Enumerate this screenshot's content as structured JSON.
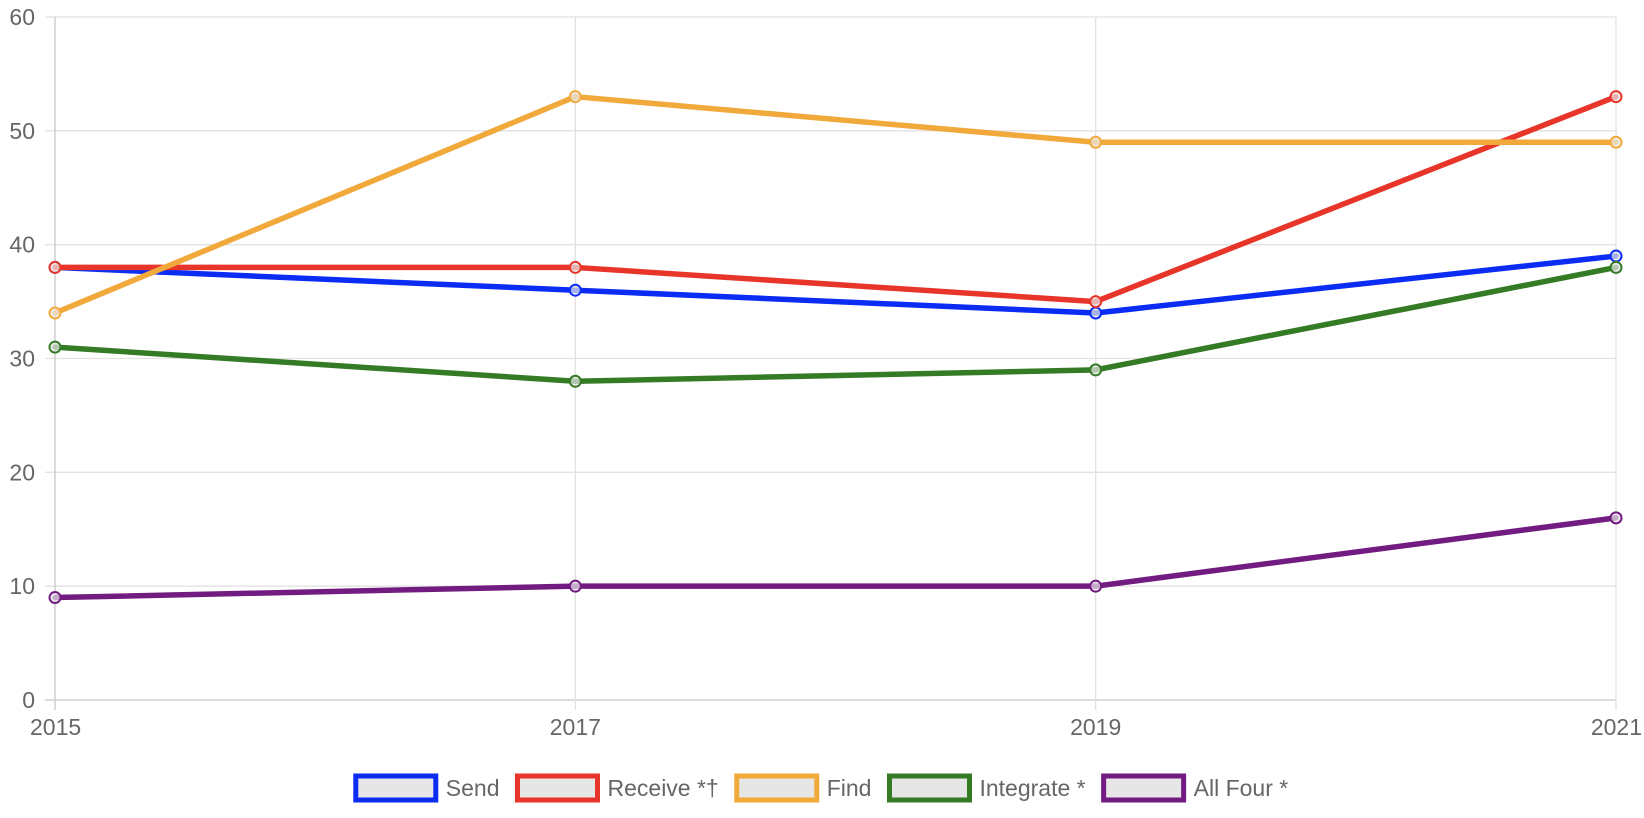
{
  "chart_data": {
    "type": "line",
    "title": "",
    "xlabel": "",
    "ylabel": "",
    "x": [
      "2015",
      "2017",
      "2019",
      "2021"
    ],
    "ylim": [
      0,
      60
    ],
    "yticks": [
      0,
      10,
      20,
      30,
      40,
      50,
      60
    ],
    "grid": true,
    "legend_position": "bottom",
    "series": [
      {
        "name": "Send",
        "color": "#0a2cf5",
        "values": [
          38,
          36,
          34,
          39
        ]
      },
      {
        "name": "Receive *†",
        "color": "#e8352a",
        "values": [
          38,
          38,
          35,
          53
        ]
      },
      {
        "name": "Find",
        "color": "#f2a93b",
        "values": [
          34,
          53,
          49,
          49
        ]
      },
      {
        "name": "Integrate *",
        "color": "#357a25",
        "values": [
          31,
          28,
          29,
          38
        ]
      },
      {
        "name": "All Four *",
        "color": "#721b80",
        "values": [
          9,
          10,
          10,
          16
        ]
      }
    ]
  }
}
